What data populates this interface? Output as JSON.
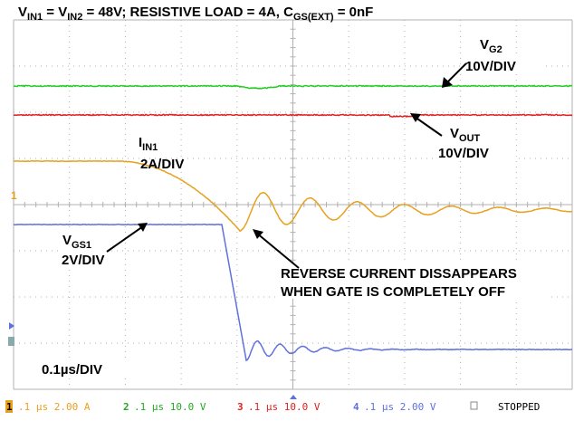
{
  "title": [
    {
      "text": "V"
    },
    {
      "sub": "IN1"
    },
    {
      "text": " = V"
    },
    {
      "sub": "IN2"
    },
    {
      "text": " = 48V; RESISTIVE LOAD = 4A, C"
    },
    {
      "sub": "GS(EXT)"
    },
    {
      "text": " = 0nF"
    }
  ],
  "annotations": {
    "vg2": {
      "name": "V",
      "sub": "G2",
      "scale": "10V/DIV"
    },
    "vout": {
      "name": "V",
      "sub": "OUT",
      "scale": "10V/DIV"
    },
    "iin1": {
      "name": "I",
      "sub": "IN1",
      "scale": "2A/DIV"
    },
    "vgs1": {
      "name": "V",
      "sub": "GS1",
      "scale": "2V/DIV"
    },
    "note": [
      "REVERSE CURRENT DISSAPPEARS",
      "WHEN GATE IS COMPLETELY OFF"
    ],
    "timebase": "0.1µs/DIV"
  },
  "status": {
    "channels": [
      {
        "id": "1",
        "text": ".1 µs 2.00 A"
      },
      {
        "id": "2",
        "text": ".1 µs 10.0 V"
      },
      {
        "id": "3",
        "text": ".1 µs 10.0 V"
      },
      {
        "id": "4",
        "text": ".1 µs 2.00 V"
      }
    ],
    "state": "STOPPED"
  },
  "marker": "1"
}
